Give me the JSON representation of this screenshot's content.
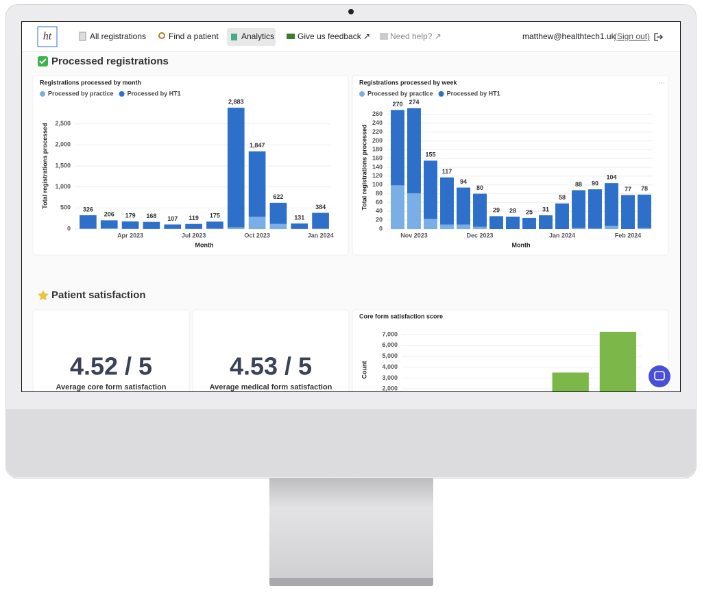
{
  "nav": {
    "logo": "ht",
    "links": [
      "All registrations",
      "Find a patient",
      "Analytics",
      "Give us feedback ↗",
      "Need help? ↗"
    ],
    "user": "matthew@healthtech1.uk",
    "sign_out": "(Sign out)"
  },
  "sections": [
    {
      "title": "Processed registrations"
    },
    {
      "title": "Patient satisfaction"
    }
  ],
  "charts": [
    {
      "type": "bar",
      "title": "Registrations processed by month",
      "x_label": "Month",
      "y_label": "Total registrations processed",
      "categories": [
        null,
        null,
        "Apr 2023",
        null,
        null,
        "Jul 2023",
        null,
        null,
        "Oct 2023",
        null,
        null,
        "Jan 2024"
      ],
      "series": [
        {
          "name": "Processed by practice",
          "color": "#7aaee6",
          "values": [
            10,
            15,
            5,
            3,
            5,
            4,
            10,
            40,
            290,
            122,
            3,
            9
          ]
        },
        {
          "name": "Processed by HT1",
          "color": "#2d6fc9",
          "values": [
            316,
            191,
            174,
            165,
            102,
            115,
            165,
            2843,
            1557,
            500,
            128,
            375
          ]
        }
      ],
      "totals": [
        326,
        206,
        179,
        168,
        107,
        119,
        175,
        {
          "value": 2883,
          "label": "2,883"
        },
        {
          "value": 1847,
          "label": "1,847"
        },
        622,
        131,
        384
      ],
      "ylim": [
        0,
        3000
      ],
      "yticks": [
        0,
        500,
        {
          "value": 1000,
          "label": "1,000"
        },
        {
          "value": 1500,
          "label": "1,500"
        },
        {
          "value": 2000,
          "label": "2,000"
        },
        {
          "value": 2500,
          "label": "2,500"
        }
      ],
      "grid": true
    },
    {
      "type": "bar",
      "title": "Registrations processed by week",
      "x_label": "Month",
      "y_label": "Total registrations processed",
      "categories": [
        null,
        "Nov 2023",
        null,
        null,
        null,
        "Dec 2023",
        null,
        null,
        null,
        null,
        "Jan 2024",
        null,
        null,
        null,
        "Feb 2024",
        null
      ],
      "series": [
        {
          "name": "Processed by practice",
          "color": "#7aaee6",
          "values": [
            99,
            81,
            23,
            10,
            10,
            5,
            0,
            0,
            0,
            0,
            0,
            2,
            1,
            7,
            0,
            2
          ]
        },
        {
          "name": "Processed by HT1",
          "color": "#2d6fc9",
          "values": [
            171,
            193,
            132,
            107,
            84,
            75,
            29,
            28,
            25,
            31,
            58,
            86,
            89,
            97,
            77,
            76
          ]
        }
      ],
      "totals": [
        270,
        274,
        155,
        117,
        94,
        80,
        29,
        28,
        25,
        31,
        58,
        88,
        90,
        104,
        77,
        78
      ],
      "ylim": [
        0,
        280
      ],
      "yticks": [
        0,
        20,
        40,
        60,
        80,
        100,
        120,
        140,
        160,
        180,
        200,
        220,
        240,
        260
      ],
      "grid": true
    },
    {
      "type": "bar",
      "title": "Core form satisfaction score",
      "y_label": "Count",
      "categories": [
        null,
        null,
        null,
        null,
        null
      ],
      "series": [
        {
          "name": null,
          "color": "#7cb74a",
          "values": [
            null,
            null,
            null,
            3500,
            7250
          ]
        }
      ],
      "ylim": [
        0,
        7500
      ],
      "yticks": [
        {
          "value": 2000,
          "label": "2,000"
        },
        {
          "value": 3000,
          "label": "3,000"
        },
        {
          "value": 4000,
          "label": "4,000"
        },
        {
          "value": 5000,
          "label": "5,000"
        },
        {
          "value": 6000,
          "label": "6,000"
        },
        {
          "value": 7000,
          "label": "7,000"
        }
      ],
      "grid": true
    }
  ],
  "kpis": [
    {
      "value": "4.52 / 5",
      "label": "Average core form satisfaction"
    },
    {
      "value": "4.53 / 5",
      "label": "Average medical form satisfaction"
    }
  ]
}
